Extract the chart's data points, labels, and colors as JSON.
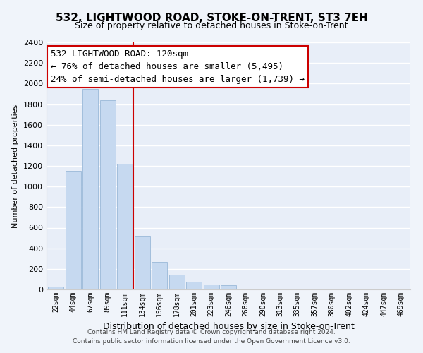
{
  "title": "532, LIGHTWOOD ROAD, STOKE-ON-TRENT, ST3 7EH",
  "subtitle": "Size of property relative to detached houses in Stoke-on-Trent",
  "xlabel": "Distribution of detached houses by size in Stoke-on-Trent",
  "ylabel": "Number of detached properties",
  "bar_labels": [
    "22sqm",
    "44sqm",
    "67sqm",
    "89sqm",
    "111sqm",
    "134sqm",
    "156sqm",
    "178sqm",
    "201sqm",
    "223sqm",
    "246sqm",
    "268sqm",
    "290sqm",
    "313sqm",
    "335sqm",
    "357sqm",
    "380sqm",
    "402sqm",
    "424sqm",
    "447sqm",
    "469sqm"
  ],
  "bar_values": [
    25,
    1150,
    1950,
    1840,
    1220,
    520,
    270,
    145,
    75,
    50,
    40,
    10,
    5,
    2,
    1,
    1,
    0,
    0,
    0,
    0,
    0
  ],
  "bar_color": "#c6d9f0",
  "bar_edge_color": "#9ab8d8",
  "vline_x_index": 4.5,
  "vline_color": "#cc0000",
  "ylim": [
    0,
    2400
  ],
  "yticks": [
    0,
    200,
    400,
    600,
    800,
    1000,
    1200,
    1400,
    1600,
    1800,
    2000,
    2200,
    2400
  ],
  "annotation_title": "532 LIGHTWOOD ROAD: 120sqm",
  "annotation_line1": "← 76% of detached houses are smaller (5,495)",
  "annotation_line2": "24% of semi-detached houses are larger (1,739) →",
  "annotation_box_color": "#ffffff",
  "annotation_box_edge": "#cc0000",
  "footnote1": "Contains HM Land Registry data © Crown copyright and database right 2024.",
  "footnote2": "Contains public sector information licensed under the Open Government Licence v3.0.",
  "bg_color": "#f0f4fa",
  "plot_bg_color": "#e8eef8",
  "grid_color": "#ffffff",
  "title_fontsize": 11,
  "subtitle_fontsize": 9,
  "xlabel_fontsize": 9,
  "ylabel_fontsize": 8,
  "tick_fontsize": 8,
  "xtick_fontsize": 7,
  "annot_fontsize": 9
}
